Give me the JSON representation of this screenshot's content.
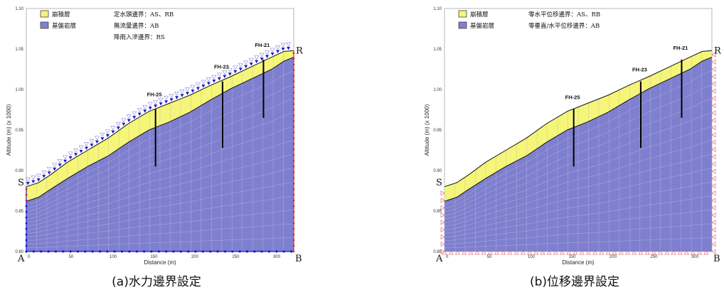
{
  "panels": [
    {
      "id": "a",
      "caption": "(a)水力邊界設定",
      "legend": [
        {
          "label": "崩積層",
          "color": "#f5f57a"
        },
        {
          "label": "基盤岩層",
          "color": "#8080d0"
        }
      ],
      "boundary_notes": [
        "定水頭邊界：AS、RB",
        "無流量邊界：AB",
        "降雨入滲邊界：RS"
      ]
    },
    {
      "id": "b",
      "caption": "(b)位移邊界設定",
      "legend": [
        {
          "label": "崩積層",
          "color": "#f5f57a"
        },
        {
          "label": "基盤岩層",
          "color": "#8080d0"
        }
      ],
      "boundary_notes": [
        "零水平位移邊界：AS、RB",
        "零垂直/水平位移邊界：AB"
      ]
    }
  ],
  "axes": {
    "xlabel": "Distance (m)",
    "ylabel": "Altitude (m) (x 1000)",
    "xticks": [
      "0",
      "50",
      "100",
      "150",
      "200",
      "250",
      "300",
      "3"
    ],
    "yticks": [
      "0.80",
      "0.85",
      "0.90",
      "0.95",
      "1.00",
      "1.05",
      "1.10"
    ]
  },
  "corners": {
    "S": "S",
    "R": "R",
    "A": "A",
    "B": "B"
  },
  "boreholes": [
    {
      "label": "FH-25",
      "x": 158,
      "top": 976,
      "bottom": 905
    },
    {
      "label": "FH-23",
      "x": 240,
      "top": 1010,
      "bottom": 928
    },
    {
      "label": "FH-21",
      "x": 290,
      "top": 1037,
      "bottom": 965
    }
  ],
  "surface_profile": [
    [
      0,
      880
    ],
    [
      15,
      885
    ],
    [
      30,
      895
    ],
    [
      50,
      910
    ],
    [
      75,
      925
    ],
    [
      100,
      940
    ],
    [
      125,
      958
    ],
    [
      150,
      973
    ],
    [
      175,
      983
    ],
    [
      200,
      993
    ],
    [
      225,
      1005
    ],
    [
      250,
      1016
    ],
    [
      275,
      1028
    ],
    [
      300,
      1040
    ],
    [
      315,
      1047
    ],
    [
      327,
      1048
    ]
  ],
  "bedrock_profile": [
    [
      0,
      862
    ],
    [
      15,
      867
    ],
    [
      30,
      877
    ],
    [
      50,
      890
    ],
    [
      75,
      905
    ],
    [
      100,
      918
    ],
    [
      125,
      935
    ],
    [
      150,
      950
    ],
    [
      175,
      960
    ],
    [
      200,
      972
    ],
    [
      225,
      987
    ],
    [
      250,
      1001
    ],
    [
      275,
      1013
    ],
    [
      300,
      1025
    ],
    [
      315,
      1035
    ],
    [
      327,
      1040
    ]
  ],
  "colors": {
    "colluvium": "#f5f57a",
    "bedrock": "#7f7fcf",
    "boundary_blue": "#1a1acc",
    "boundary_red": "#dd2222"
  }
}
